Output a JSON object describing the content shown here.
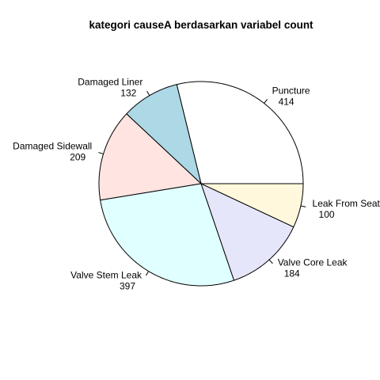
{
  "chart_data": {
    "type": "pie",
    "title": "kategori causeA berdasarkan variabel count",
    "start_angle_deg": 0,
    "direction": "counterclockwise",
    "slices": [
      {
        "label": "Puncture",
        "value": 414,
        "color": "#FFFFFF"
      },
      {
        "label": "Damaged Liner",
        "value": 132,
        "color": "#ADD8E6"
      },
      {
        "label": "Damaged Sidewall",
        "value": 209,
        "color": "#FFE4E1"
      },
      {
        "label": "Valve Stem Leak",
        "value": 397,
        "color": "#E0FFFF"
      },
      {
        "label": "Valve Core Leak",
        "value": 184,
        "color": "#E6E6FA"
      },
      {
        "label": "Leak From Seat",
        "value": 100,
        "color": "#FFF8DC"
      }
    ]
  }
}
